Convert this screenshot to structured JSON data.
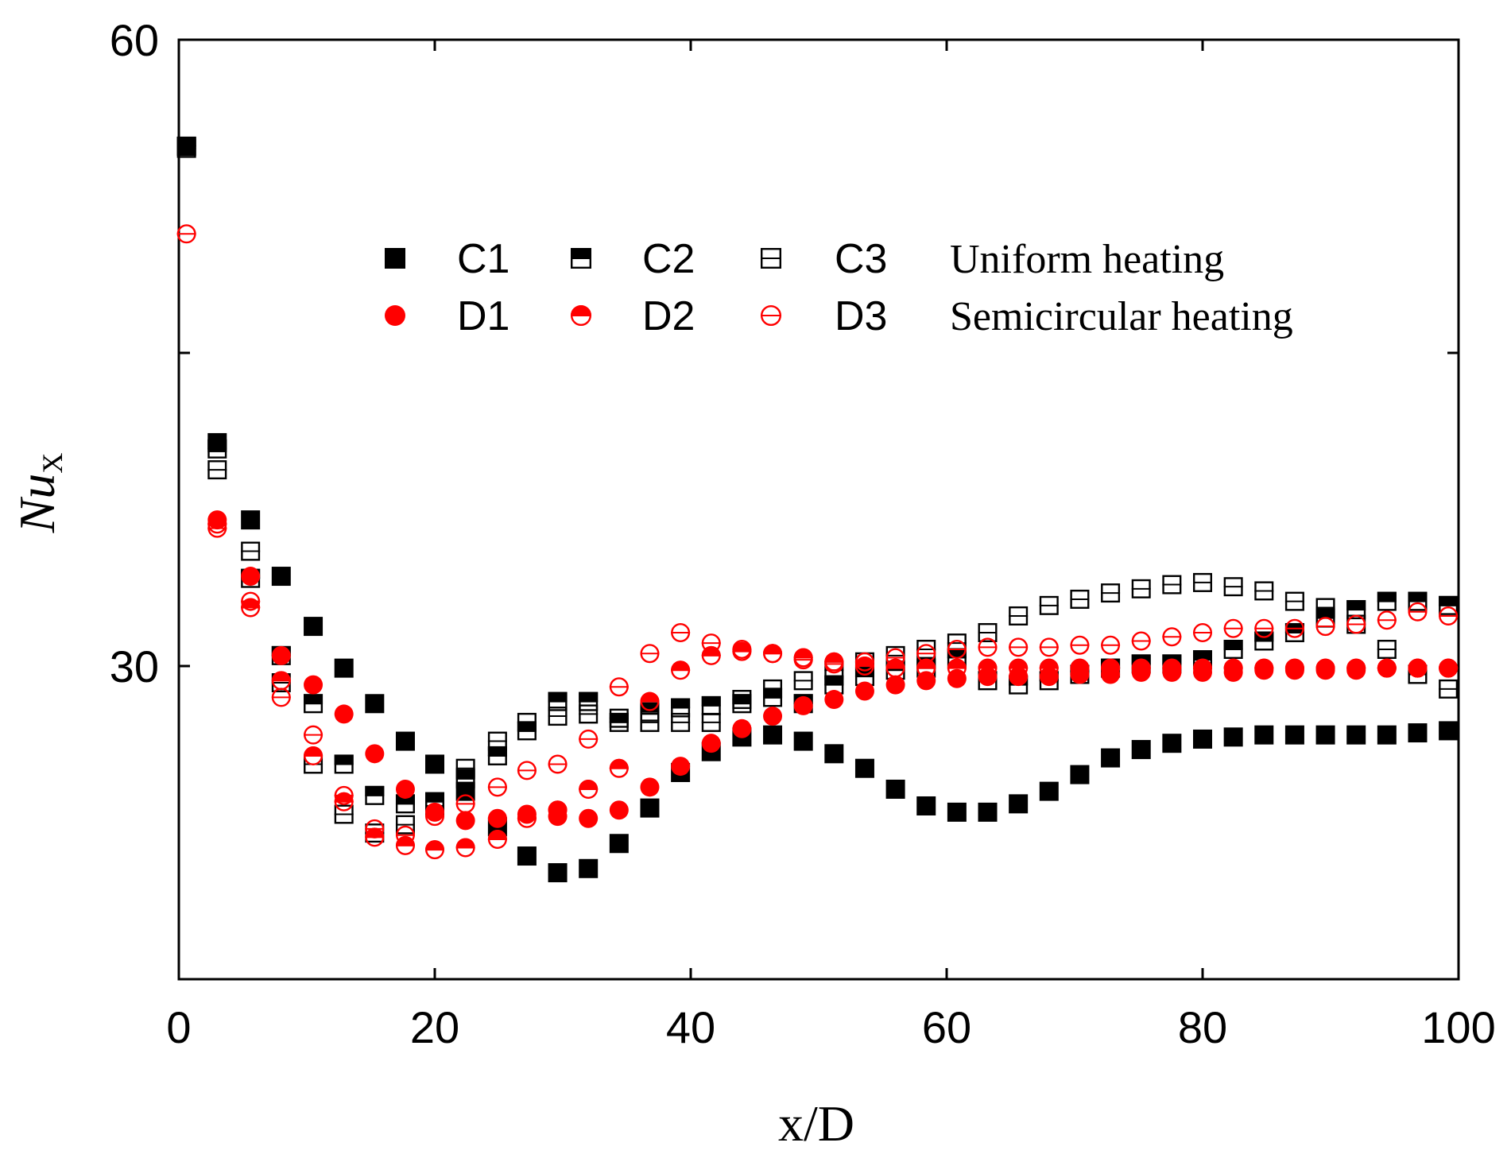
{
  "chart_data": {
    "type": "scatter",
    "title": "",
    "xlabel": "x/D",
    "ylabel_main": "Nu",
    "ylabel_sub": "X",
    "xlim": [
      0,
      100
    ],
    "ylim": [
      15,
      60
    ],
    "x_ticks": [
      0,
      20,
      40,
      60,
      80,
      100
    ],
    "y_ticks": [
      30,
      60
    ],
    "grid": false,
    "legend_position": "upper-middle",
    "legend_groups": [
      {
        "label": "Uniform heating",
        "series": [
          "C1",
          "C2",
          "C3"
        ]
      },
      {
        "label": "Semicircular heating",
        "series": [
          "D1",
          "D2",
          "D3"
        ]
      }
    ],
    "series": [
      {
        "name": "C1",
        "color": "#000000",
        "marker": "square",
        "fill": "full",
        "x": [
          0.6,
          3.0,
          5.6,
          8.0,
          10.5,
          12.9,
          15.3,
          17.7,
          20.0,
          22.4,
          24.9,
          27.2,
          29.6,
          32.0,
          34.4,
          36.8,
          39.2,
          41.6,
          44.0,
          46.4,
          48.8,
          51.2,
          53.6,
          56.0,
          58.4,
          60.8,
          63.2,
          65.6,
          68.0,
          70.4,
          72.8,
          75.2,
          77.6,
          80.0,
          82.4,
          84.8,
          87.2,
          89.6,
          92.0,
          94.4,
          96.8,
          99.2
        ],
        "y": [
          54.9,
          40.7,
          37.0,
          34.3,
          31.9,
          29.9,
          28.2,
          26.4,
          25.3,
          24.0,
          22.3,
          20.9,
          20.1,
          20.3,
          21.5,
          23.2,
          24.9,
          25.9,
          26.6,
          26.7,
          26.4,
          25.8,
          25.1,
          24.1,
          23.3,
          23.0,
          23.0,
          23.4,
          24.0,
          24.8,
          25.6,
          26.0,
          26.3,
          26.5,
          26.6,
          26.7,
          26.7,
          26.7,
          26.7,
          26.7,
          26.8,
          26.9
        ]
      },
      {
        "name": "C2",
        "color": "#000000",
        "marker": "square",
        "fill": "top",
        "x": [
          0.6,
          3.0,
          5.6,
          8.0,
          10.5,
          12.9,
          15.3,
          17.7,
          20.0,
          22.4,
          24.9,
          27.2,
          29.6,
          32.0,
          34.4,
          36.8,
          39.2,
          41.6,
          44.0,
          46.4,
          48.8,
          51.2,
          53.6,
          56.0,
          58.4,
          60.8,
          63.2,
          65.6,
          68.0,
          70.4,
          72.8,
          75.2,
          77.6,
          80.0,
          82.4,
          84.8,
          87.2,
          89.6,
          92.0,
          94.4,
          96.8,
          99.2
        ],
        "y": [
          54.9,
          40.4,
          34.2,
          30.5,
          28.2,
          25.3,
          23.8,
          23.4,
          23.5,
          24.6,
          25.7,
          26.9,
          28.3,
          28.3,
          27.3,
          27.8,
          28.0,
          28.1,
          28.2,
          28.5,
          28.2,
          29.1,
          29.5,
          29.8,
          29.9,
          30.4,
          29.3,
          29.1,
          29.3,
          29.6,
          29.9,
          30.1,
          30.1,
          30.3,
          30.8,
          31.2,
          31.6,
          32.3,
          32.7,
          33.1,
          33.1,
          32.9
        ]
      },
      {
        "name": "C3",
        "color": "#000000",
        "marker": "square",
        "fill": "none",
        "x": [
          0.6,
          3.0,
          5.6,
          8.0,
          10.5,
          12.9,
          15.3,
          17.7,
          20.0,
          22.4,
          24.9,
          27.2,
          29.6,
          32.0,
          34.4,
          36.8,
          39.2,
          41.6,
          44.0,
          46.4,
          48.8,
          51.2,
          53.6,
          56.0,
          58.4,
          60.8,
          63.2,
          65.6,
          68.0,
          70.4,
          72.8,
          75.2,
          77.6,
          80.0,
          82.4,
          84.8,
          87.2,
          89.6,
          92.0,
          94.4,
          96.8,
          99.2
        ],
        "y": [
          54.8,
          39.4,
          35.5,
          29.2,
          25.3,
          22.9,
          22.0,
          22.4,
          23.3,
          25.1,
          26.4,
          27.3,
          27.6,
          27.7,
          27.5,
          27.3,
          27.3,
          27.3,
          28.4,
          28.9,
          29.3,
          29.8,
          30.2,
          30.5,
          30.8,
          31.1,
          31.6,
          32.4,
          32.9,
          33.2,
          33.5,
          33.7,
          33.9,
          34.0,
          33.8,
          33.6,
          33.1,
          32.8,
          32.0,
          30.8,
          29.6,
          28.9
        ]
      },
      {
        "name": "D1",
        "color": "#ff0000",
        "marker": "circle",
        "fill": "full",
        "x": [
          3.0,
          5.6,
          8.0,
          10.5,
          12.9,
          15.3,
          17.7,
          20.0,
          22.4,
          24.9,
          27.2,
          29.6,
          32.0,
          34.4,
          36.8,
          39.2,
          41.6,
          44.0,
          46.4,
          48.8,
          51.2,
          53.6,
          56.0,
          58.4,
          60.8,
          63.2,
          65.6,
          68.0,
          70.4,
          72.8,
          75.2,
          77.6,
          80.0,
          82.4,
          84.8,
          87.2,
          89.6,
          92.0,
          94.4,
          96.8,
          99.2
        ],
        "y": [
          37.0,
          34.3,
          30.5,
          29.1,
          27.7,
          25.8,
          24.1,
          23.0,
          22.6,
          22.7,
          22.9,
          22.8,
          22.7,
          23.1,
          24.2,
          25.2,
          26.3,
          27.0,
          27.6,
          28.1,
          28.4,
          28.8,
          29.1,
          29.3,
          29.4,
          29.5,
          29.5,
          29.5,
          29.6,
          29.6,
          29.7,
          29.7,
          29.7,
          29.7,
          29.8,
          29.8,
          29.8,
          29.8,
          29.9,
          29.9,
          29.9
        ]
      },
      {
        "name": "D2",
        "color": "#ff0000",
        "marker": "circle",
        "fill": "top",
        "x": [
          3.0,
          5.6,
          8.0,
          10.5,
          12.9,
          15.3,
          17.7,
          20.0,
          22.4,
          24.9,
          27.2,
          29.6,
          32.0,
          34.4,
          36.8,
          39.2,
          41.6,
          44.0,
          46.4,
          48.8,
          51.2,
          53.6,
          56.0,
          58.4,
          60.8,
          63.2,
          65.6,
          68.0,
          70.4,
          72.8,
          75.2,
          77.6,
          80.0,
          82.4,
          84.8,
          87.2,
          89.6,
          92.0,
          94.4,
          96.8,
          99.2
        ],
        "y": [
          36.8,
          32.8,
          29.3,
          25.7,
          23.5,
          21.8,
          21.4,
          21.2,
          21.3,
          21.7,
          22.7,
          23.1,
          24.1,
          25.1,
          28.3,
          29.8,
          30.5,
          30.7,
          30.6,
          30.4,
          30.2,
          30.0,
          29.9,
          29.9,
          29.9,
          29.9,
          29.9,
          29.9,
          29.9,
          29.9,
          29.9,
          29.9,
          29.9,
          29.9,
          29.9,
          29.9,
          29.9,
          29.9,
          29.9,
          29.9,
          29.9
        ]
      },
      {
        "name": "D3",
        "color": "#ff0000",
        "marker": "circle",
        "fill": "none",
        "x": [
          0.6,
          3.0,
          5.6,
          8.0,
          10.5,
          12.9,
          15.3,
          17.7,
          20.0,
          22.4,
          24.9,
          27.2,
          29.6,
          32.0,
          34.4,
          36.8,
          39.2,
          41.6,
          44.0,
          46.4,
          48.8,
          51.2,
          53.6,
          56.0,
          58.4,
          60.8,
          63.2,
          65.6,
          68.0,
          70.4,
          72.8,
          75.2,
          77.6,
          80.0,
          82.4,
          84.8,
          87.2,
          89.6,
          92.0,
          94.4,
          96.8,
          99.2
        ],
        "y": [
          50.7,
          36.6,
          33.1,
          28.5,
          26.7,
          23.8,
          22.2,
          21.9,
          22.8,
          23.4,
          24.2,
          25.0,
          25.3,
          26.5,
          29.0,
          30.6,
          31.6,
          31.1,
          30.8,
          30.6,
          30.3,
          30.1,
          30.2,
          30.4,
          30.6,
          30.8,
          30.9,
          30.9,
          30.9,
          31.0,
          31.0,
          31.2,
          31.4,
          31.6,
          31.8,
          31.8,
          31.8,
          31.9,
          32.0,
          32.2,
          32.6,
          32.4
        ]
      }
    ]
  }
}
